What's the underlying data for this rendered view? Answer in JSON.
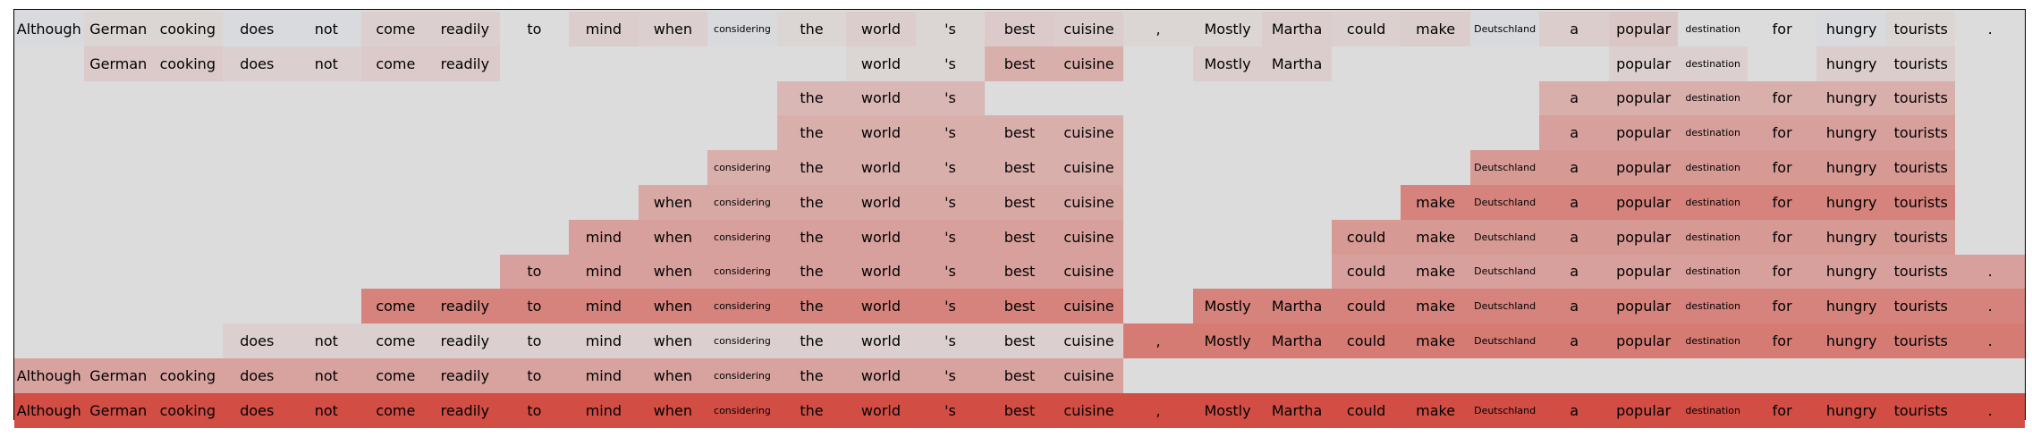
{
  "chart_data": {
    "type": "heatmap",
    "title": "",
    "xlabel": "",
    "ylabel": "",
    "grid": false,
    "color_scale": {
      "low": "#b7c8e8",
      "mid": "#dcdcdc",
      "high": "#d1473c"
    },
    "small_font_tokens": [
      "considering",
      "Deutschland",
      "destination"
    ],
    "tokens": [
      "Although",
      "German",
      "cooking",
      "does",
      "not",
      "come",
      "readily",
      "to",
      "mind",
      "when",
      "considering",
      "the",
      "world",
      "'s",
      "best",
      "cuisine",
      ",",
      "Mostly",
      "Martha",
      "could",
      "make",
      "Deutschland",
      "a",
      "popular",
      "destination",
      "for",
      "hungry",
      "tourists",
      "."
    ],
    "rows": [
      {
        "present": [
          1,
          1,
          1,
          1,
          1,
          1,
          1,
          1,
          1,
          1,
          1,
          1,
          1,
          1,
          1,
          1,
          1,
          1,
          1,
          1,
          1,
          1,
          1,
          1,
          1,
          1,
          1,
          1,
          1
        ],
        "values": [
          -0.08,
          0.05,
          0.05,
          -0.1,
          -0.1,
          0.08,
          0.08,
          0,
          0.1,
          0.08,
          -0.12,
          0.05,
          0.1,
          0.05,
          0.12,
          0.1,
          0.05,
          0.05,
          0.1,
          0.08,
          0.1,
          -0.1,
          0.1,
          0.15,
          0,
          0,
          -0.12,
          0.05,
          0
        ]
      },
      {
        "present": [
          0,
          1,
          1,
          1,
          1,
          1,
          1,
          0,
          0,
          0,
          0,
          0,
          1,
          1,
          1,
          1,
          0,
          1,
          1,
          0,
          0,
          0,
          0,
          1,
          1,
          0,
          1,
          1,
          0
        ],
        "values": [
          0,
          0.12,
          0.12,
          0.08,
          0.08,
          0.12,
          0.12,
          0,
          0,
          0,
          0,
          0,
          0.05,
          0.05,
          0.3,
          0.3,
          0,
          0.1,
          0.1,
          0,
          0,
          0,
          0,
          0.08,
          0.08,
          0,
          0.1,
          0.1,
          0
        ]
      },
      {
        "present": [
          0,
          0,
          0,
          0,
          0,
          0,
          0,
          0,
          0,
          0,
          0,
          1,
          1,
          1,
          0,
          0,
          0,
          0,
          0,
          0,
          0,
          0,
          1,
          1,
          1,
          1,
          1,
          1,
          0
        ],
        "values": [
          0,
          0,
          0,
          0,
          0,
          0,
          0,
          0,
          0,
          0,
          0,
          0.25,
          0.25,
          0.25,
          0,
          0,
          0,
          0,
          0,
          0,
          0,
          0,
          0.3,
          0.3,
          0.3,
          0.3,
          0.3,
          0.3,
          0
        ]
      },
      {
        "present": [
          0,
          0,
          0,
          0,
          0,
          0,
          0,
          0,
          0,
          0,
          0,
          1,
          1,
          1,
          1,
          1,
          0,
          0,
          0,
          0,
          0,
          0,
          1,
          1,
          1,
          1,
          1,
          1,
          0
        ],
        "values": [
          0,
          0,
          0,
          0,
          0,
          0,
          0,
          0,
          0,
          0,
          0,
          0.3,
          0.3,
          0.3,
          0.3,
          0.3,
          0,
          0,
          0,
          0,
          0,
          0,
          0.4,
          0.4,
          0.4,
          0.4,
          0.4,
          0.4,
          0
        ]
      },
      {
        "present": [
          0,
          0,
          0,
          0,
          0,
          0,
          0,
          0,
          0,
          0,
          1,
          1,
          1,
          1,
          1,
          1,
          0,
          0,
          0,
          0,
          0,
          1,
          1,
          1,
          1,
          1,
          1,
          1,
          0
        ],
        "values": [
          0,
          0,
          0,
          0,
          0,
          0,
          0,
          0,
          0,
          0,
          0.3,
          0.3,
          0.3,
          0.3,
          0.3,
          0.3,
          0,
          0,
          0,
          0,
          0,
          0.45,
          0.45,
          0.45,
          0.45,
          0.45,
          0.45,
          0.45,
          0
        ]
      },
      {
        "present": [
          0,
          0,
          0,
          0,
          0,
          0,
          0,
          0,
          0,
          1,
          1,
          1,
          1,
          1,
          1,
          1,
          0,
          0,
          0,
          0,
          1,
          1,
          1,
          1,
          1,
          1,
          1,
          1,
          0
        ],
        "values": [
          0,
          0,
          0,
          0,
          0,
          0,
          0,
          0,
          0,
          0.35,
          0.35,
          0.35,
          0.35,
          0.35,
          0.35,
          0.35,
          0,
          0,
          0,
          0,
          0.6,
          0.6,
          0.6,
          0.6,
          0.6,
          0.6,
          0.6,
          0.6,
          0
        ]
      },
      {
        "present": [
          0,
          0,
          0,
          0,
          0,
          0,
          0,
          0,
          1,
          1,
          1,
          1,
          1,
          1,
          1,
          1,
          0,
          0,
          0,
          1,
          1,
          1,
          1,
          1,
          1,
          1,
          1,
          1,
          0
        ],
        "values": [
          0,
          0,
          0,
          0,
          0,
          0,
          0,
          0,
          0.4,
          0.4,
          0.4,
          0.4,
          0.4,
          0.4,
          0.4,
          0.4,
          0,
          0,
          0,
          0.45,
          0.45,
          0.45,
          0.45,
          0.45,
          0.45,
          0.45,
          0.45,
          0.45,
          0
        ]
      },
      {
        "present": [
          0,
          0,
          0,
          0,
          0,
          0,
          0,
          1,
          1,
          1,
          1,
          1,
          1,
          1,
          1,
          1,
          0,
          0,
          0,
          1,
          1,
          1,
          1,
          1,
          1,
          1,
          1,
          1,
          1
        ],
        "values": [
          0,
          0,
          0,
          0,
          0,
          0,
          0,
          0.4,
          0.4,
          0.4,
          0.4,
          0.4,
          0.4,
          0.4,
          0.4,
          0.4,
          0,
          0,
          0,
          0.4,
          0.4,
          0.4,
          0.4,
          0.4,
          0.4,
          0.4,
          0.4,
          0.4,
          0.4
        ]
      },
      {
        "present": [
          0,
          0,
          0,
          0,
          0,
          1,
          1,
          1,
          1,
          1,
          1,
          1,
          1,
          1,
          1,
          1,
          0,
          1,
          1,
          1,
          1,
          1,
          1,
          1,
          1,
          1,
          1,
          1,
          1
        ],
        "values": [
          0,
          0,
          0,
          0,
          0,
          0.6,
          0.6,
          0.6,
          0.6,
          0.6,
          0.6,
          0.6,
          0.6,
          0.6,
          0.6,
          0.6,
          0,
          0.6,
          0.6,
          0.6,
          0.6,
          0.6,
          0.6,
          0.6,
          0.6,
          0.6,
          0.6,
          0.6,
          0.6
        ]
      },
      {
        "present": [
          0,
          0,
          0,
          1,
          1,
          1,
          1,
          1,
          1,
          1,
          1,
          1,
          1,
          1,
          1,
          1,
          1,
          1,
          1,
          1,
          1,
          1,
          1,
          1,
          1,
          1,
          1,
          1,
          1
        ],
        "values": [
          0,
          0,
          0,
          0.08,
          0.08,
          0.08,
          0.08,
          0.08,
          0.08,
          0.08,
          0.08,
          0.08,
          0.08,
          0.08,
          0.08,
          0.08,
          0.65,
          0.65,
          0.65,
          0.65,
          0.65,
          0.65,
          0.65,
          0.65,
          0.65,
          0.65,
          0.65,
          0.65,
          0.65
        ]
      },
      {
        "present": [
          1,
          1,
          1,
          1,
          1,
          1,
          1,
          1,
          1,
          1,
          1,
          1,
          1,
          1,
          1,
          1,
          0,
          0,
          0,
          0,
          0,
          0,
          0,
          0,
          0,
          0,
          0,
          0,
          0
        ],
        "values": [
          0.38,
          0.38,
          0.38,
          0.38,
          0.38,
          0.38,
          0.38,
          0.38,
          0.38,
          0.38,
          0.38,
          0.38,
          0.38,
          0.38,
          0.38,
          0.38,
          0,
          0,
          0,
          0,
          0,
          0,
          0,
          0,
          0,
          0,
          0,
          0,
          0
        ]
      },
      {
        "present": [
          1,
          1,
          1,
          1,
          1,
          1,
          1,
          1,
          1,
          1,
          1,
          1,
          1,
          1,
          1,
          1,
          1,
          1,
          1,
          1,
          1,
          1,
          1,
          1,
          1,
          1,
          1,
          1,
          1
        ],
        "values": [
          0.95,
          0.95,
          0.95,
          0.95,
          0.95,
          0.95,
          0.95,
          0.95,
          0.95,
          0.95,
          0.95,
          0.95,
          0.95,
          0.95,
          0.95,
          0.95,
          0.95,
          0.95,
          0.95,
          0.95,
          0.95,
          0.95,
          0.95,
          0.95,
          0.95,
          0.95,
          0.95,
          0.95,
          0.95
        ]
      }
    ]
  }
}
